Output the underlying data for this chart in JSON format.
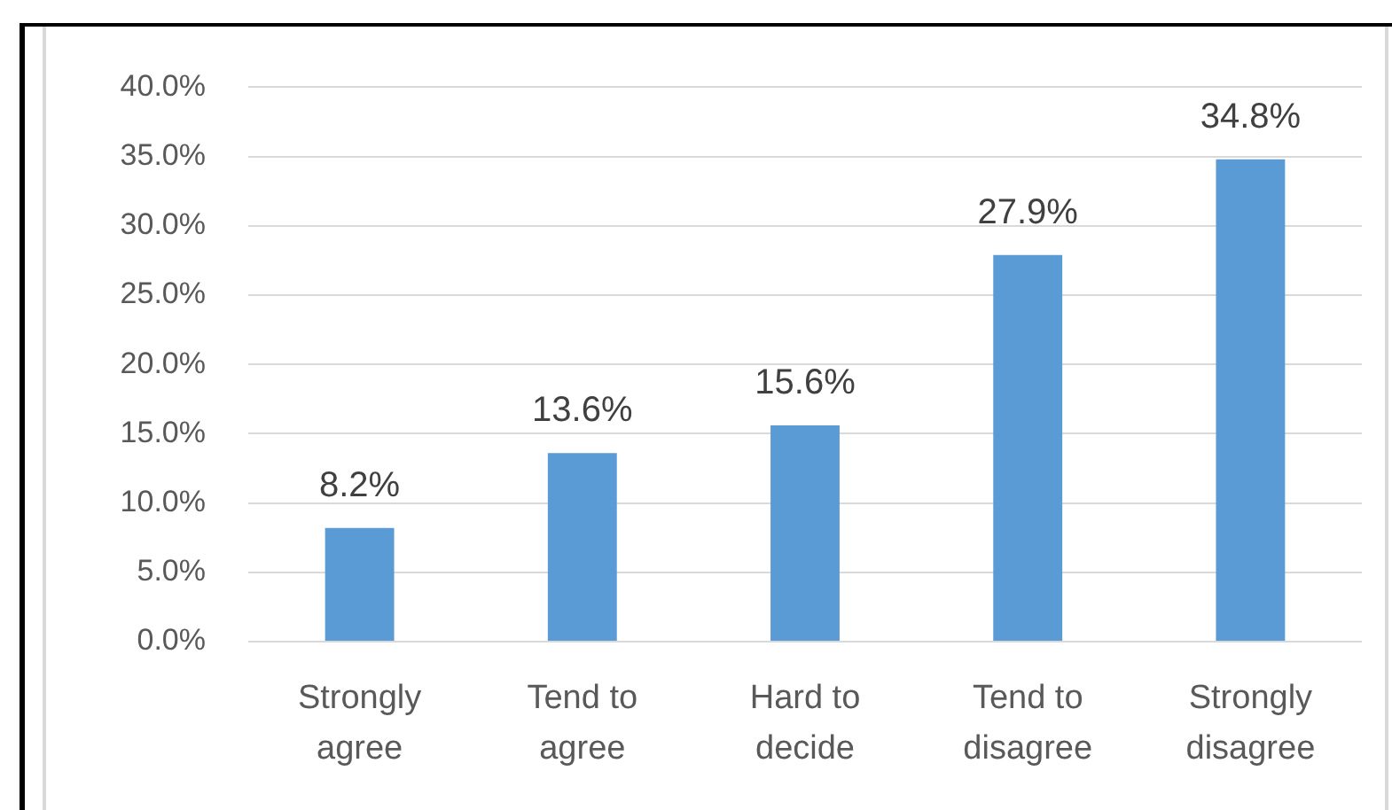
{
  "chart_data": {
    "type": "bar",
    "categories": [
      "Strongly agree",
      "Tend to agree",
      "Hard to decide",
      "Tend to disagree",
      "Strongly disagree"
    ],
    "values": [
      8.2,
      13.6,
      15.6,
      27.9,
      34.8
    ],
    "value_labels": [
      "8.2%",
      "13.6%",
      "15.6%",
      "27.9%",
      "34.8%"
    ],
    "color": "#5b9bd5",
    "ylim": [
      0,
      40
    ],
    "yticks": [
      {
        "value": 0,
        "label": "0.0%"
      },
      {
        "value": 5,
        "label": "5.0%"
      },
      {
        "value": 10,
        "label": "10.0%"
      },
      {
        "value": 15,
        "label": "15.0%"
      },
      {
        "value": 20,
        "label": "20.0%"
      },
      {
        "value": 25,
        "label": "25.0%"
      },
      {
        "value": 30,
        "label": "30.0%"
      },
      {
        "value": 35,
        "label": "35.0%"
      },
      {
        "value": 40,
        "label": "40.0%"
      }
    ],
    "grid": "y"
  }
}
